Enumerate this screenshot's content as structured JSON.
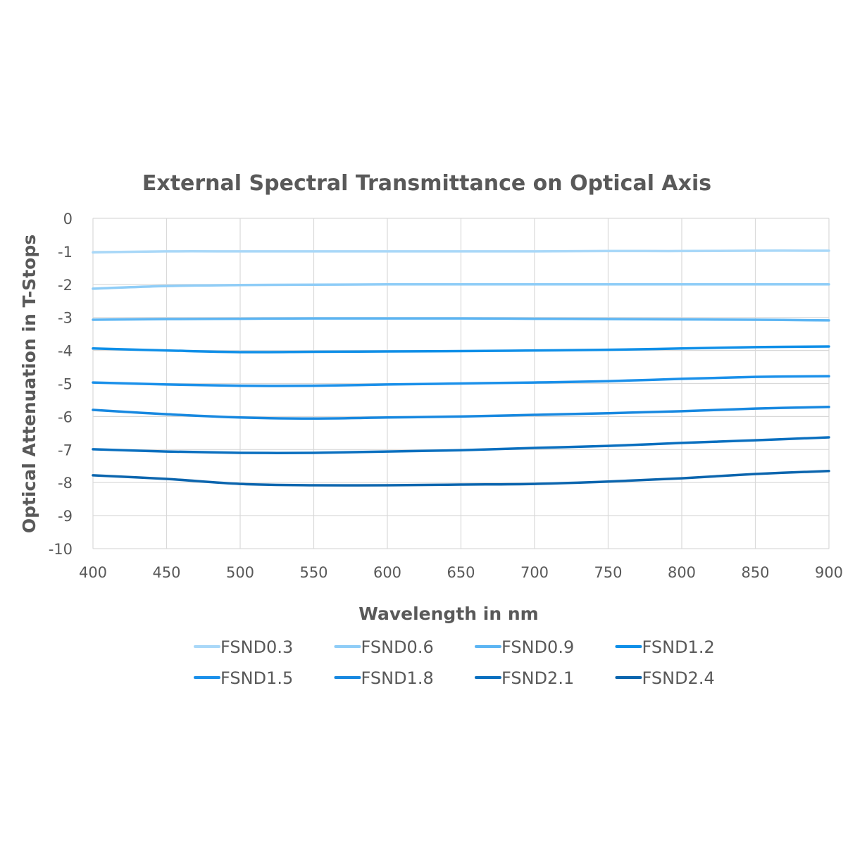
{
  "chart_data": {
    "type": "line",
    "title": "External Spectral Transmittance on Optical Axis",
    "xlabel": "Wavelength in nm",
    "ylabel": "Optical Attenuation in T-Stops",
    "xlim": [
      400,
      900
    ],
    "ylim": [
      -10,
      0
    ],
    "xticks": [
      "400",
      "450",
      "500",
      "550",
      "600",
      "650",
      "700",
      "750",
      "800",
      "850",
      "900"
    ],
    "yticks": [
      "0",
      "-1",
      "-2",
      "-3",
      "-4",
      "-5",
      "-6",
      "-7",
      "-8",
      "-9",
      "-10"
    ],
    "grid": true,
    "legend_position": "bottom",
    "x": [
      400,
      450,
      500,
      550,
      600,
      650,
      700,
      750,
      800,
      850,
      900
    ],
    "series": [
      {
        "name": "FSND0.3",
        "color": "#a9d8f8",
        "values": [
          -1.03,
          -1.0,
          -1.0,
          -1.0,
          -1.0,
          -1.0,
          -1.0,
          -0.99,
          -0.99,
          -0.98,
          -0.98
        ]
      },
      {
        "name": "FSND0.6",
        "color": "#8fcdf7",
        "values": [
          -2.13,
          -2.05,
          -2.02,
          -2.01,
          -2.0,
          -2.0,
          -2.0,
          -2.0,
          -2.0,
          -2.0,
          -2.0
        ]
      },
      {
        "name": "FSND0.9",
        "color": "#5cb5f3",
        "values": [
          -3.07,
          -3.05,
          -3.04,
          -3.03,
          -3.03,
          -3.03,
          -3.04,
          -3.05,
          -3.06,
          -3.07,
          -3.09
        ]
      },
      {
        "name": "FSND1.2",
        "color": "#0f8fe8",
        "values": [
          -3.94,
          -4.0,
          -4.05,
          -4.04,
          -4.03,
          -4.02,
          -4.0,
          -3.98,
          -3.94,
          -3.9,
          -3.88
        ]
      },
      {
        "name": "FSND1.5",
        "color": "#1a90ea",
        "values": [
          -4.97,
          -5.03,
          -5.07,
          -5.07,
          -5.03,
          -5.0,
          -4.97,
          -4.93,
          -4.86,
          -4.8,
          -4.78
        ]
      },
      {
        "name": "FSND1.8",
        "color": "#1788e0",
        "values": [
          -5.8,
          -5.93,
          -6.03,
          -6.06,
          -6.03,
          -6.0,
          -5.95,
          -5.9,
          -5.84,
          -5.76,
          -5.71
        ]
      },
      {
        "name": "FSND2.1",
        "color": "#0a6fbf",
        "values": [
          -6.99,
          -7.06,
          -7.1,
          -7.1,
          -7.06,
          -7.02,
          -6.95,
          -6.89,
          -6.8,
          -6.72,
          -6.63
        ]
      },
      {
        "name": "FSND2.4",
        "color": "#0b65ae",
        "values": [
          -7.78,
          -7.89,
          -8.04,
          -8.08,
          -8.08,
          -8.06,
          -8.04,
          -7.97,
          -7.87,
          -7.74,
          -7.65
        ]
      }
    ]
  }
}
